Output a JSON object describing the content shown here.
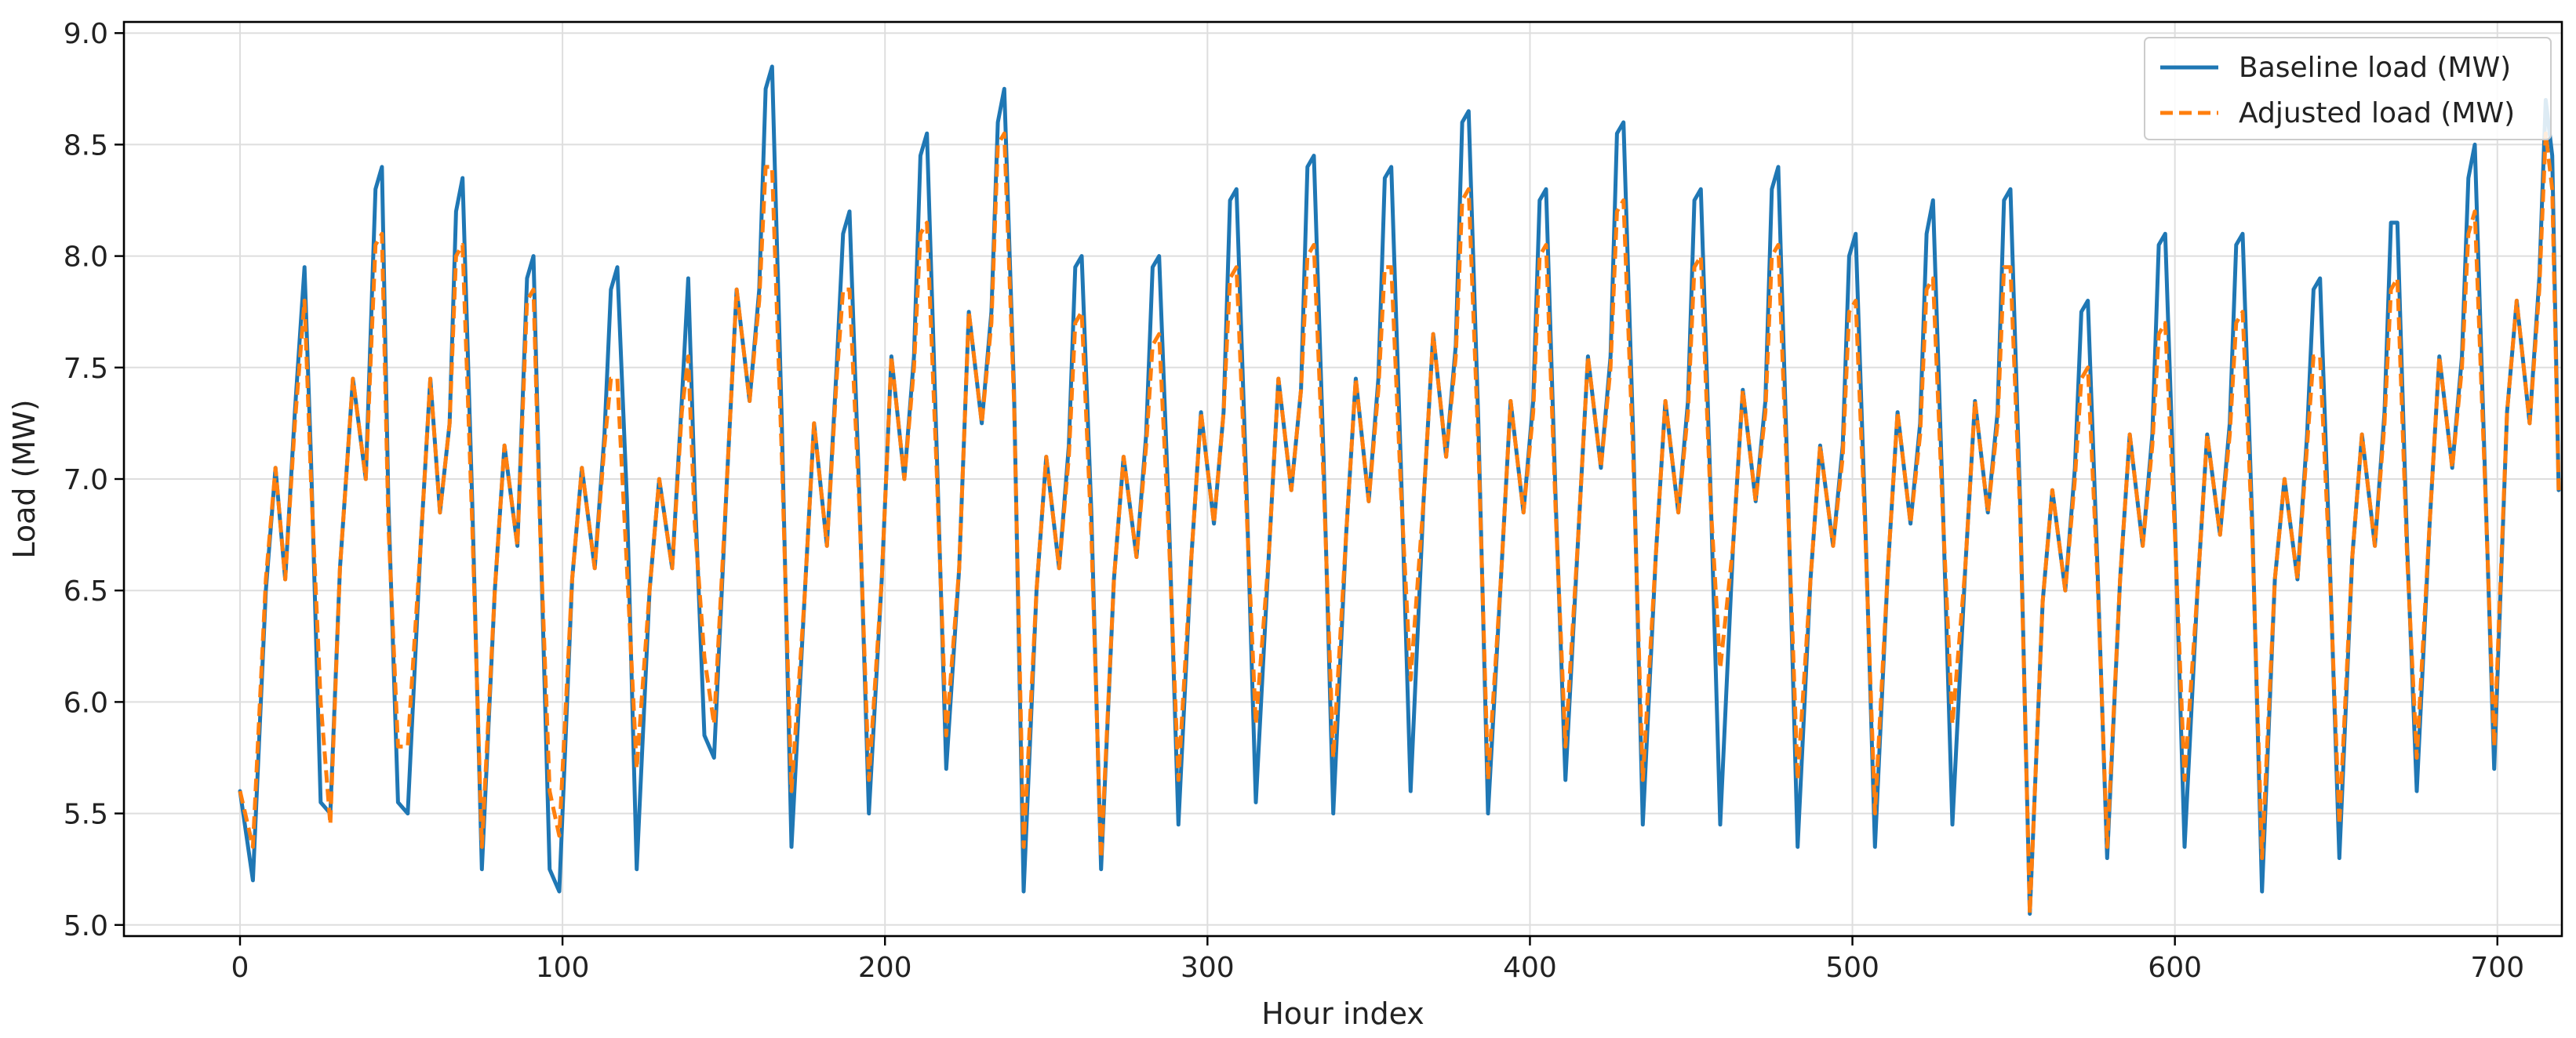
{
  "chart_data": {
    "type": "line",
    "title": "",
    "xlabel": "Hour index",
    "ylabel": "Load (MW)",
    "xlim": [
      -36,
      720
    ],
    "ylim": [
      4.95,
      9.05
    ],
    "xticks": [
      0,
      100,
      200,
      300,
      400,
      500,
      600,
      700
    ],
    "yticks": [
      5.0,
      5.5,
      6.0,
      6.5,
      7.0,
      7.5,
      8.0,
      8.5,
      9.0
    ],
    "ytick_labels": [
      "5.0",
      "5.5",
      "6.0",
      "6.5",
      "7.0",
      "7.5",
      "8.0",
      "8.5",
      "9.0"
    ],
    "grid": true,
    "legend_position": "top-right",
    "x": [
      0,
      4,
      8,
      11,
      14,
      17,
      20,
      22,
      25,
      28,
      31,
      35,
      39,
      42,
      44,
      46,
      49,
      52,
      56,
      59,
      62,
      65,
      67,
      69,
      72,
      75,
      79,
      82,
      86,
      89,
      91,
      93,
      96,
      99,
      103,
      106,
      110,
      113,
      115,
      117,
      120,
      123,
      127,
      130,
      134,
      137,
      139,
      141,
      144,
      147,
      151,
      154,
      158,
      161,
      163,
      165,
      168,
      171,
      175,
      178,
      182,
      185,
      187,
      189,
      192,
      195,
      199,
      202,
      206,
      209,
      211,
      213,
      216,
      219,
      223,
      226,
      230,
      233,
      235,
      237,
      240,
      243,
      247,
      250,
      254,
      257,
      259,
      261,
      264,
      267,
      271,
      274,
      278,
      281,
      283,
      285,
      288,
      291,
      295,
      298,
      302,
      305,
      307,
      309,
      312,
      315,
      319,
      322,
      326,
      329,
      331,
      333,
      336,
      339,
      343,
      346,
      350,
      353,
      355,
      357,
      360,
      363,
      367,
      370,
      374,
      377,
      379,
      381,
      384,
      387,
      391,
      394,
      398,
      401,
      403,
      405,
      408,
      411,
      415,
      418,
      422,
      425,
      427,
      429,
      432,
      435,
      439,
      442,
      446,
      449,
      451,
      453,
      456,
      459,
      463,
      466,
      470,
      473,
      475,
      477,
      480,
      483,
      487,
      490,
      494,
      497,
      499,
      501,
      504,
      507,
      511,
      514,
      518,
      521,
      523,
      525,
      528,
      531,
      535,
      538,
      542,
      545,
      547,
      549,
      552,
      555,
      559,
      562,
      566,
      569,
      571,
      573,
      576,
      579,
      583,
      586,
      590,
      593,
      595,
      597,
      600,
      603,
      607,
      610,
      614,
      617,
      619,
      621,
      624,
      627,
      631,
      634,
      638,
      641,
      643,
      645,
      648,
      651,
      655,
      658,
      662,
      665,
      667,
      669,
      672,
      675,
      679,
      682,
      686,
      689,
      691,
      693,
      696,
      699,
      703,
      706,
      710,
      713,
      715,
      717,
      719
    ],
    "series": [
      {
        "name": "Baseline load (MW)",
        "color": "#1f77b4",
        "style": "solid",
        "values": [
          5.6,
          5.2,
          6.5,
          7.05,
          6.55,
          7.3,
          7.95,
          7.1,
          5.55,
          5.5,
          6.6,
          7.45,
          7.0,
          8.3,
          8.4,
          6.9,
          5.55,
          5.5,
          6.7,
          7.45,
          6.85,
          7.25,
          8.2,
          8.35,
          6.9,
          5.25,
          6.5,
          7.15,
          6.7,
          7.9,
          8.0,
          6.85,
          5.25,
          5.15,
          6.55,
          7.05,
          6.6,
          7.2,
          7.85,
          7.95,
          6.9,
          5.25,
          6.5,
          7.0,
          6.6,
          7.35,
          7.9,
          6.95,
          5.85,
          5.75,
          7.0,
          7.85,
          7.35,
          7.85,
          8.75,
          8.85,
          7.25,
          5.35,
          6.45,
          7.25,
          6.7,
          7.5,
          8.1,
          8.2,
          6.95,
          5.5,
          6.55,
          7.55,
          7.0,
          7.55,
          8.45,
          8.55,
          7.15,
          5.7,
          6.6,
          7.75,
          7.25,
          7.75,
          8.6,
          8.75,
          7.4,
          5.15,
          6.5,
          7.1,
          6.6,
          7.15,
          7.95,
          8.0,
          6.85,
          5.25,
          6.55,
          7.1,
          6.65,
          7.2,
          7.95,
          8.0,
          6.85,
          5.45,
          6.65,
          7.3,
          6.8,
          7.3,
          8.25,
          8.3,
          7.0,
          5.55,
          6.65,
          7.45,
          6.95,
          7.4,
          8.4,
          8.45,
          7.1,
          5.5,
          6.75,
          7.45,
          6.9,
          7.45,
          8.35,
          8.4,
          7.05,
          5.6,
          6.9,
          7.65,
          7.1,
          7.6,
          8.6,
          8.65,
          7.25,
          5.5,
          6.55,
          7.35,
          6.85,
          7.35,
          8.25,
          8.3,
          6.9,
          5.65,
          6.75,
          7.55,
          7.05,
          7.55,
          8.55,
          8.6,
          7.2,
          5.45,
          6.65,
          7.35,
          6.85,
          7.35,
          8.25,
          8.3,
          6.95,
          5.45,
          6.7,
          7.4,
          6.9,
          7.35,
          8.3,
          8.4,
          6.95,
          5.35,
          6.55,
          7.15,
          6.7,
          7.15,
          8.0,
          8.1,
          6.8,
          5.35,
          6.6,
          7.3,
          6.8,
          7.25,
          8.1,
          8.25,
          6.9,
          5.45,
          6.6,
          7.35,
          6.85,
          7.3,
          8.25,
          8.3,
          6.9,
          5.05,
          6.45,
          6.95,
          6.5,
          7.05,
          7.75,
          7.8,
          6.6,
          5.3,
          6.55,
          7.2,
          6.7,
          7.2,
          8.05,
          8.1,
          6.8,
          5.35,
          6.5,
          7.2,
          6.75,
          7.25,
          8.05,
          8.1,
          6.8,
          5.15,
          6.55,
          7.0,
          6.55,
          7.2,
          7.85,
          7.9,
          6.65,
          5.3,
          6.65,
          7.2,
          6.7,
          7.3,
          8.15,
          8.15,
          6.7,
          5.6,
          6.8,
          7.55,
          7.05,
          7.55,
          8.35,
          8.5,
          7.1,
          5.7,
          7.3,
          7.8,
          7.25,
          7.9,
          8.7,
          8.45,
          6.95
        ]
      },
      {
        "name": "Adjusted load (MW)",
        "color": "#ff7f0e",
        "style": "dashed",
        "values": [
          5.6,
          5.35,
          6.55,
          7.05,
          6.55,
          7.25,
          7.8,
          7.0,
          6.0,
          5.45,
          6.6,
          7.45,
          7.0,
          8.05,
          8.1,
          6.8,
          5.8,
          5.8,
          6.7,
          7.45,
          6.85,
          7.25,
          8.0,
          8.05,
          6.8,
          5.35,
          6.5,
          7.15,
          6.7,
          7.8,
          7.85,
          6.8,
          5.6,
          5.4,
          6.55,
          7.05,
          6.6,
          7.15,
          7.45,
          7.45,
          6.6,
          5.7,
          6.5,
          7.0,
          6.6,
          7.3,
          7.55,
          6.8,
          6.2,
          5.9,
          7.0,
          7.85,
          7.35,
          7.8,
          8.4,
          8.4,
          7.1,
          5.6,
          6.45,
          7.25,
          6.7,
          7.45,
          7.85,
          7.85,
          6.9,
          5.65,
          6.55,
          7.55,
          7.0,
          7.5,
          8.1,
          8.15,
          7.05,
          5.85,
          6.6,
          7.75,
          7.25,
          7.7,
          8.5,
          8.55,
          7.35,
          5.35,
          6.5,
          7.1,
          6.6,
          7.1,
          7.7,
          7.75,
          6.75,
          5.3,
          6.55,
          7.1,
          6.65,
          7.15,
          7.6,
          7.65,
          6.75,
          5.65,
          6.65,
          7.3,
          6.8,
          7.3,
          7.9,
          7.95,
          6.9,
          5.9,
          6.65,
          7.45,
          6.95,
          7.4,
          8.0,
          8.05,
          7.0,
          5.75,
          6.75,
          7.45,
          6.9,
          7.4,
          7.95,
          7.95,
          6.95,
          6.1,
          6.9,
          7.65,
          7.1,
          7.55,
          8.25,
          8.3,
          7.15,
          5.65,
          6.55,
          7.35,
          6.85,
          7.3,
          8.0,
          8.05,
          6.85,
          5.8,
          6.75,
          7.55,
          7.05,
          7.5,
          8.2,
          8.25,
          7.1,
          5.65,
          6.65,
          7.35,
          6.85,
          7.3,
          7.95,
          8.0,
          6.9,
          6.15,
          6.7,
          7.4,
          6.9,
          7.3,
          8.0,
          8.05,
          6.9,
          5.65,
          6.55,
          7.15,
          6.7,
          7.1,
          7.75,
          7.8,
          6.75,
          5.5,
          6.6,
          7.3,
          6.8,
          7.2,
          7.85,
          7.9,
          6.85,
          5.9,
          6.6,
          7.35,
          6.85,
          7.25,
          7.95,
          7.95,
          6.85,
          5.05,
          6.45,
          6.95,
          6.5,
          7.0,
          7.45,
          7.5,
          6.55,
          5.35,
          6.55,
          7.2,
          6.7,
          7.15,
          7.65,
          7.7,
          6.75,
          5.65,
          6.5,
          7.2,
          6.75,
          7.2,
          7.7,
          7.75,
          6.75,
          5.3,
          6.55,
          7.0,
          6.55,
          7.15,
          7.55,
          7.55,
          6.6,
          5.45,
          6.65,
          7.2,
          6.7,
          7.25,
          7.85,
          7.9,
          6.65,
          5.75,
          6.8,
          7.55,
          7.05,
          7.5,
          8.1,
          8.2,
          7.05,
          5.8,
          7.3,
          7.8,
          7.25,
          7.85,
          8.55,
          8.3,
          6.95
        ]
      }
    ]
  }
}
